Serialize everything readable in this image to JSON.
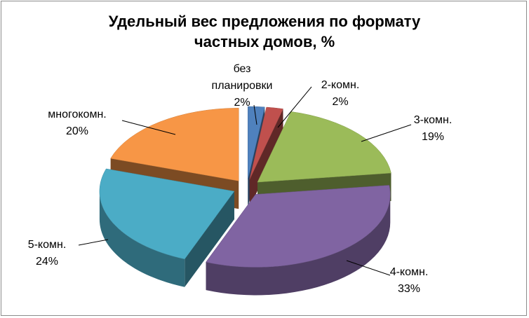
{
  "chart_data": {
    "type": "pie3d",
    "title": "Удельный вес предложения по формату частных домов, %",
    "categories": [
      "без планировки",
      "2-комн.",
      "3-комн.",
      "4-комн.",
      "5-комн.",
      "многокомн."
    ],
    "values": [
      2,
      2,
      19,
      33,
      24,
      20
    ],
    "value_labels": [
      "2%",
      "2%",
      "19%",
      "33%",
      "24%",
      "20%"
    ],
    "colors": [
      "#4f81bd",
      "#c0504d",
      "#9bbb59",
      "#8064a2",
      "#4bacc6",
      "#f79646"
    ]
  }
}
